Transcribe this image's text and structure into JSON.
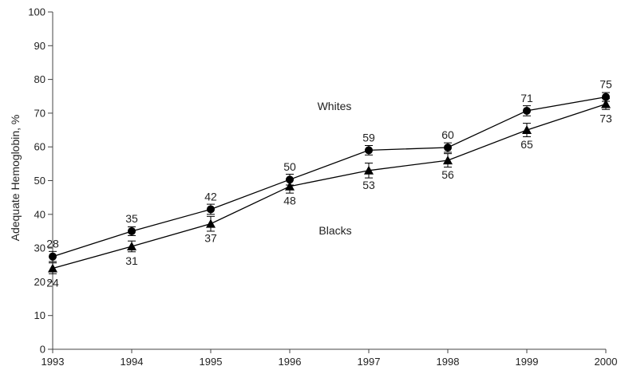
{
  "chart_data": {
    "type": "line",
    "title": "",
    "xlabel": "",
    "ylabel": "Adequate Hemoglobin, %",
    "x": [
      1993,
      1994,
      1995,
      1996,
      1997,
      1998,
      1999,
      2000
    ],
    "x_tick_labels": [
      "1993",
      "1994",
      "1995",
      "1996",
      "1997",
      "1998",
      "1999",
      "2000"
    ],
    "ylim": [
      0,
      100
    ],
    "y_ticks": [
      0,
      10,
      20,
      30,
      40,
      50,
      60,
      70,
      80,
      90,
      100
    ],
    "y_tick_labels": [
      "0",
      "10",
      "20",
      "30",
      "40",
      "50",
      "60",
      "70",
      "80",
      "90",
      "100"
    ],
    "grid": false,
    "legend": "none; series labelled directly on the plot",
    "series": [
      {
        "name": "Whites",
        "marker": "circle",
        "values": [
          27.5,
          35,
          41.5,
          50.3,
          59,
          59.8,
          70.7,
          74.8
        ],
        "labels": [
          "28",
          "35",
          "42",
          "50",
          "59",
          "60",
          "71",
          "75"
        ],
        "error": [
          1.5,
          1.3,
          1.5,
          1.6,
          1.4,
          1.4,
          1.5,
          1.3
        ]
      },
      {
        "name": "Blacks",
        "marker": "triangle",
        "values": [
          24,
          30.5,
          37.2,
          48.3,
          53,
          56,
          65,
          72.7
        ],
        "labels": [
          "24",
          "31",
          "37",
          "48",
          "53",
          "56",
          "65",
          "73"
        ],
        "error": [
          1.6,
          1.6,
          2.2,
          2,
          2.2,
          2,
          2,
          1.6
        ]
      }
    ],
    "colors": {
      "line": "#000000",
      "marker": "#000000",
      "axis": "#444444",
      "text": "#222222"
    }
  }
}
